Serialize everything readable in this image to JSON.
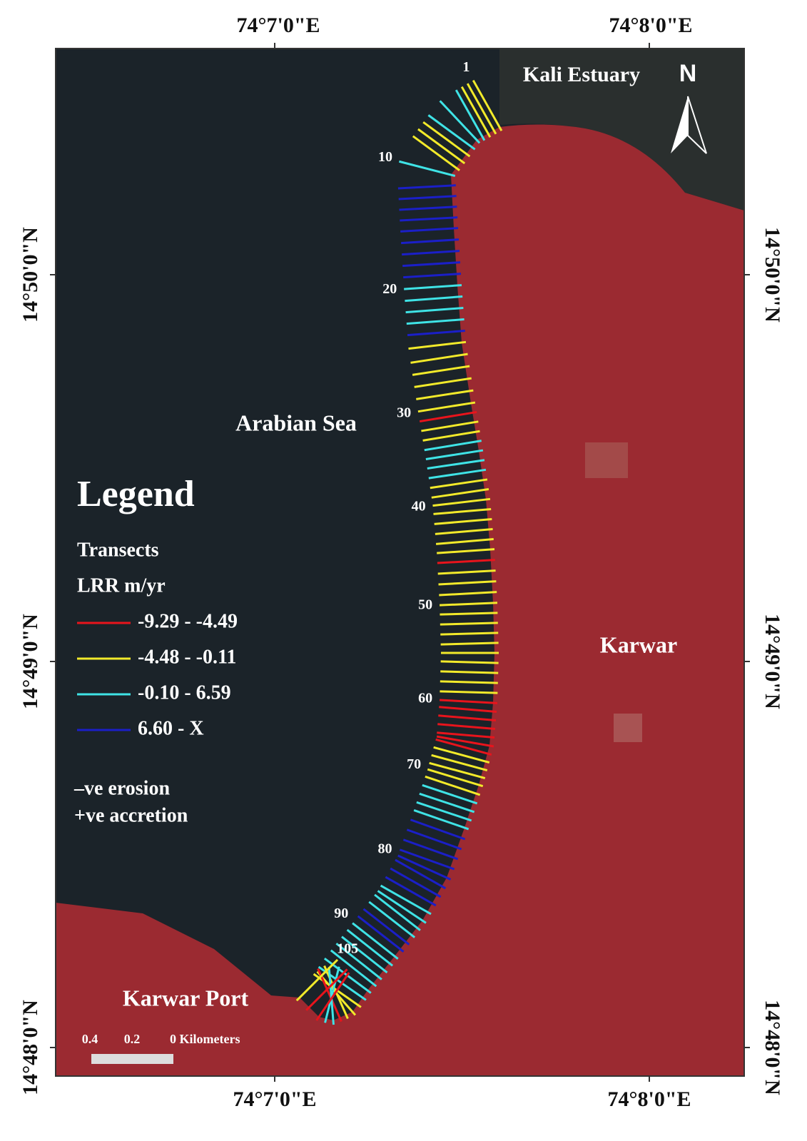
{
  "frame": {
    "top_labels": [
      "74°7'0\"E",
      "74°8'0\"E"
    ],
    "bottom_labels": [
      "74°7'0\"E",
      "74°8'0\"E"
    ],
    "left_labels": [
      "14°50'0\"N",
      "14°49'0\"N",
      "14°48'0\"N"
    ],
    "right_labels": [
      "14°50'0\"N",
      "14°49'0\"N",
      "14°48'0\"N"
    ]
  },
  "places": [
    "Kali Estuary",
    "Arabian Sea",
    "Karwar",
    "Karwar Port"
  ],
  "north": "N",
  "legend": {
    "title": "Legend",
    "layer": "Transects",
    "field": "LRR m/yr",
    "classes": [
      {
        "label": "-9.29 - -4.49",
        "color": "#e8141c"
      },
      {
        "label": "-4.48 - -0.11",
        "color": "#f2ea2a"
      },
      {
        "label": "-0.10 - 6.59",
        "color": "#3fe3e6"
      },
      {
        "label": "6.60 - X",
        "color": "#1b1fc8"
      }
    ],
    "notes": [
      "–ve erosion",
      "+ve accretion"
    ]
  },
  "transect_labels": [
    "1",
    "10",
    "20",
    "30",
    "40",
    "50",
    "60",
    "70",
    "80",
    "90",
    "105"
  ],
  "transects": {
    "classes": [
      1,
      1,
      1,
      2,
      2,
      2,
      1,
      1,
      1,
      2,
      3,
      3,
      3,
      3,
      3,
      3,
      3,
      3,
      3,
      2,
      2,
      2,
      2,
      3,
      1,
      1,
      1,
      1,
      1,
      1,
      0,
      1,
      1,
      2,
      2,
      2,
      2,
      1,
      1,
      1,
      1,
      1,
      1,
      1,
      1,
      0,
      1,
      1,
      1,
      1,
      1,
      1,
      1,
      1,
      1,
      1,
      1,
      1,
      1,
      0,
      0,
      0,
      0,
      0,
      0,
      0,
      1,
      1,
      1,
      1,
      1,
      2,
      2,
      2,
      2,
      3,
      3,
      3,
      3,
      3,
      3,
      3,
      3,
      2,
      2,
      2,
      2,
      3,
      3,
      2,
      2,
      2,
      2,
      2,
      2,
      2,
      1,
      1,
      1,
      0,
      2,
      2,
      0,
      0,
      1
    ]
  },
  "scale_bar": [
    "0.4",
    "0.2",
    "0 Kilometers"
  ]
}
